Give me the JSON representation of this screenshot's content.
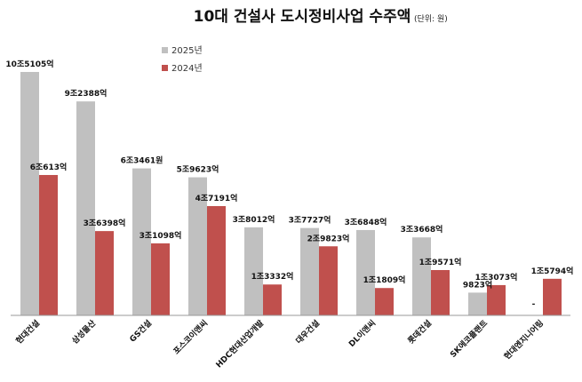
{
  "chart_data": {
    "type": "bar",
    "title": "10대 건설사 도시정비사업 수주액",
    "unit_note": "(단위: 원)",
    "categories": [
      "현대건설",
      "삼성물산",
      "GS건설",
      "포스코이앤씨",
      "HDC현대산업개발",
      "대우건설",
      "DL이앤씨",
      "롯데건설",
      "SK에코플랜트",
      "현대엔지니어링"
    ],
    "series": [
      {
        "name": "2025년",
        "color": "#c0c0c0",
        "values": [
          10.5105,
          9.2388,
          6.3461,
          5.9623,
          3.8012,
          3.7727,
          3.6848,
          3.3668,
          0.9823,
          null
        ],
        "labels": [
          "10조5105억",
          "9조2388억",
          "6조3461원",
          "5조9623억",
          "3조8012억",
          "3조7727억",
          "3조6848억",
          "3조3668억",
          "9823억",
          "-"
        ]
      },
      {
        "name": "2024년",
        "color": "#c0504d",
        "values": [
          6.0613,
          3.6398,
          3.1098,
          4.7191,
          1.3332,
          2.9823,
          1.1809,
          1.9571,
          1.3073,
          1.5794
        ],
        "labels": [
          "6조613억",
          "3조6398억",
          "3조1098억",
          "4조7191억",
          "1조3332억",
          "2조9823억",
          "1조1809억",
          "1조9571억",
          "1조3073억",
          "1조5794억"
        ]
      }
    ],
    "ylim": [
      0,
      10.5105
    ],
    "legend": "top-left",
    "grid": false
  }
}
